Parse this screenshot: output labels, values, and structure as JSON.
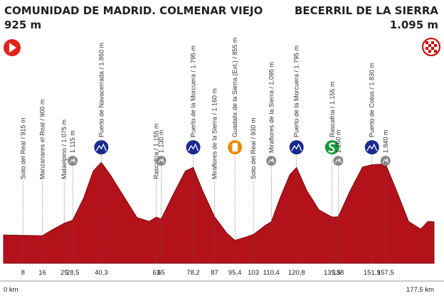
{
  "chart_data": {
    "type": "area",
    "start": {
      "name": "COMUNIDAD DE MADRID. COLMENAR VIEJO",
      "elevation": "925 m"
    },
    "finish": {
      "name": "BECERRIL DE LA SIERRA",
      "elevation": "1.095 m"
    },
    "xlim": [
      0,
      177.5
    ],
    "xlim_labels": [
      "0 km",
      "177,5 km"
    ],
    "ylim": [
      560,
      2000
    ],
    "color": "#b3121b",
    "x": [
      0,
      8,
      16,
      20,
      25,
      28.5,
      33,
      37,
      40.3,
      44,
      50,
      55,
      60,
      63,
      65,
      70,
      75,
      78.2,
      82,
      87,
      92,
      95.4,
      100,
      103,
      108,
      110.4,
      114,
      118,
      120.8,
      125,
      130,
      135.5,
      138,
      143,
      148,
      151.9,
      157.5,
      162,
      167,
      172,
      175,
      177.5
    ],
    "values": [
      925,
      920,
      915,
      990,
      1075,
      1115,
      1400,
      1750,
      1860,
      1700,
      1400,
      1150,
      1100,
      1155,
      1130,
      1450,
      1750,
      1795,
      1500,
      1160,
      950,
      855,
      900,
      930,
      1050,
      1095,
      1400,
      1700,
      1795,
      1500,
      1250,
      1155,
      1160,
      1500,
      1800,
      1830,
      1840,
      1500,
      1100,
      1000,
      1100,
      1095
    ],
    "xticks": [
      8,
      16,
      25,
      {
        "value": 28.5,
        "label": "28,5"
      },
      {
        "value": 40.3,
        "label": "40,3"
      },
      63,
      65,
      {
        "value": 78.2,
        "label": "78,2"
      },
      87,
      {
        "value": 95.4,
        "label": "95,4"
      },
      103,
      {
        "value": 110.4,
        "label": "110,4"
      },
      {
        "value": 120.8,
        "label": "120,8"
      },
      {
        "value": 135.5,
        "label": "135,5"
      },
      138,
      {
        "value": 151.9,
        "label": "151,9"
      },
      {
        "value": 157.5,
        "label": "157,5"
      }
    ],
    "markers": [
      {
        "text": "Soto del Real / 915 m",
        "icon": "none"
      },
      {
        "text": "Manzanares el Real / 900 m",
        "icon": "none"
      },
      {
        "text": "Mataelpino / 1.075 m",
        "icon": "none"
      },
      {
        "text": "1.115 m",
        "icon": "point"
      },
      {
        "text": "Puerto de Navacerrada / 1.860 m",
        "icon": "kom"
      },
      {
        "text": "Rascafría / 1.155 m",
        "icon": "none"
      },
      {
        "text": "1.130 m",
        "icon": "point"
      },
      {
        "text": "Puerto de la Morcuera / 1.795 m",
        "icon": "kom"
      },
      {
        "text": "Miraflores de la Sierra / 1.160 m",
        "icon": "none"
      },
      {
        "text": "Guadalix de la Sierra (Ext.) / 855 m",
        "icon": "feed"
      },
      {
        "text": "Soto del Real / 930 m",
        "icon": "none"
      },
      {
        "text": "Miraflores de la Sierra / 1.095 m",
        "icon": "point"
      },
      {
        "text": "Puerto de la Morcuera / 1.795 m",
        "icon": "kom"
      },
      {
        "text": "Rascafría / 1.155 m",
        "icon": "sprint"
      },
      {
        "text": "1.160 m",
        "icon": "point"
      },
      {
        "text": "Puerto de Cotos / 1.830 m",
        "icon": "kom"
      },
      {
        "text": "1.840 m",
        "icon": "point"
      }
    ]
  }
}
